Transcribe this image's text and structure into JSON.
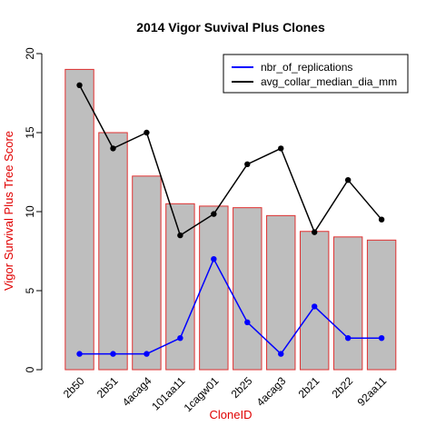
{
  "chart_data": {
    "type": "bar",
    "title": "2014 Vigor Suvival Plus Clones",
    "xlabel": "CloneID",
    "ylabel": "Vigor Survival Plus Tree Score",
    "ylim": [
      0,
      20
    ],
    "yticks": [
      0,
      5,
      10,
      15,
      20
    ],
    "categories": [
      "2b50",
      "2b51",
      "4acag4",
      "101aa11",
      "1cagw01",
      "2b25",
      "4acag3",
      "2b21",
      "2b22",
      "92aa11"
    ],
    "bar_values": [
      19.0,
      15.0,
      12.25,
      10.5,
      10.35,
      10.25,
      9.75,
      8.75,
      8.4,
      8.2
    ],
    "bar_fill": "#bebebe",
    "bar_border": "#e03030",
    "label_color": "#e00000",
    "series": [
      {
        "name": "nbr_of_replications",
        "type": "line",
        "color": "#0000ff",
        "values": [
          1,
          1,
          1,
          2,
          7,
          3,
          1,
          4,
          2,
          2
        ]
      },
      {
        "name": "avg_collar_median_dia_mm",
        "type": "line",
        "color": "#000000",
        "values": [
          18,
          14,
          15,
          8.5,
          9.85,
          13,
          14,
          8.7,
          12,
          9.5
        ]
      }
    ],
    "legend_position": "top-right",
    "grid": false
  }
}
